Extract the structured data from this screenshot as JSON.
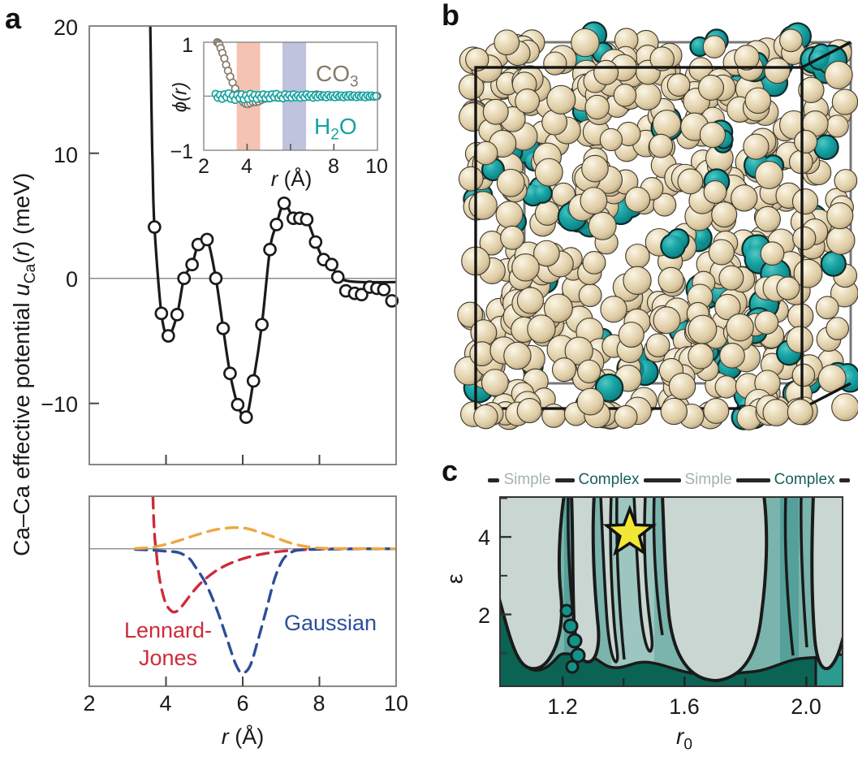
{
  "panels": {
    "a": {
      "label": "a"
    },
    "b": {
      "label": "b",
      "description": "simulation-box-snapshot",
      "particle_color": "#e9dcbc",
      "solvent_color": "#16a2a3",
      "box_color": "#141414",
      "back_edge_color": "#777777",
      "sphere_count": 460,
      "blob_count": 58,
      "fringe_count": 20,
      "seed": 11
    },
    "c": {
      "label": "c"
    }
  },
  "chart_data": [
    {
      "type": "scatter",
      "title": "Ca-Ca effective potential",
      "ylabel_parts": {
        "p1": "Ca–Ca effective potential ",
        "p2": "u",
        "p3": "Ca",
        "p4": "(",
        "p5": "r",
        "p6": ") (meV)"
      },
      "xlim": [
        2,
        10
      ],
      "ylim": [
        -14.9,
        20
      ],
      "ytick_values": [
        20,
        10,
        0,
        -10
      ],
      "yticklabels": [
        "20",
        "10",
        "0",
        "−10"
      ],
      "xtick_minor": [
        4,
        6,
        8
      ],
      "line_color": "#1a1a1a",
      "marker": "open-circle",
      "points": [
        [
          3.7,
          4.1
        ],
        [
          3.88,
          -2.8
        ],
        [
          4.06,
          -4.6
        ],
        [
          4.29,
          -2.9
        ],
        [
          4.47,
          0.0
        ],
        [
          4.68,
          1.1
        ],
        [
          4.84,
          2.7
        ],
        [
          5.07,
          3.1
        ],
        [
          5.3,
          0.0
        ],
        [
          5.49,
          -4.0
        ],
        [
          5.67,
          -7.6
        ],
        [
          5.87,
          -10.1
        ],
        [
          6.09,
          -11.1
        ],
        [
          6.28,
          -8.2
        ],
        [
          6.5,
          -3.7
        ],
        [
          6.71,
          2.3
        ],
        [
          6.88,
          4.3
        ],
        [
          7.08,
          6.0
        ],
        [
          7.32,
          4.8
        ],
        [
          7.49,
          4.8
        ],
        [
          7.67,
          4.7
        ],
        [
          7.9,
          2.9
        ],
        [
          8.11,
          1.5
        ],
        [
          8.32,
          1.1
        ],
        [
          8.48,
          0.1
        ],
        [
          8.69,
          -1.0
        ],
        [
          8.92,
          -1.2
        ],
        [
          9.1,
          -1.3
        ],
        [
          9.31,
          -0.7
        ],
        [
          9.5,
          -0.8
        ],
        [
          9.68,
          -0.9
        ],
        [
          9.89,
          -1.8
        ]
      ],
      "line_entry": [
        [
          3.59,
          20.4
        ],
        [
          3.62,
          14
        ],
        [
          3.65,
          9
        ],
        [
          3.7,
          4.1
        ]
      ],
      "line_tail": [
        [
          8.48,
          0.1
        ],
        [
          8.75,
          -0.22
        ],
        [
          9.1,
          -0.3
        ],
        [
          9.55,
          -0.31
        ],
        [
          10,
          -0.3
        ]
      ]
    },
    {
      "type": "scatter",
      "title": "inset transferability test",
      "ylabel": "ϕ(r)",
      "xlabel_parts": {
        "p1": "r",
        "p2": " (Å)"
      },
      "xlim": [
        2,
        10
      ],
      "ylim": [
        -1,
        1
      ],
      "yticklabels": [
        "1",
        "−1"
      ],
      "xtick_values": [
        2,
        4,
        8,
        10
      ],
      "xticklabels": [
        "2",
        "4",
        "8",
        "10"
      ],
      "xtick_minor": [
        4,
        6,
        8
      ],
      "bands": [
        {
          "x0": 3.52,
          "x1": 4.6,
          "color": "#f4c3b2"
        },
        {
          "x0": 5.63,
          "x1": 6.72,
          "color": "#bfc3dd"
        }
      ],
      "series": [
        {
          "label_parts": {
            "p1": "CO",
            "sub": "3",
            "p2": ""
          },
          "color": "#857a69",
          "points": [
            [
              2.62,
              1.0
            ],
            [
              2.68,
              0.985
            ],
            [
              2.72,
              0.96
            ],
            [
              2.78,
              0.89
            ],
            [
              2.86,
              0.8
            ],
            [
              2.95,
              0.7
            ],
            [
              3.03,
              0.58
            ],
            [
              3.12,
              0.47
            ],
            [
              3.22,
              0.36
            ],
            [
              3.33,
              0.25
            ],
            [
              3.45,
              0.14
            ],
            [
              3.57,
              0.04
            ],
            [
              3.7,
              -0.05
            ],
            [
              3.82,
              -0.11
            ],
            [
              3.93,
              -0.14
            ],
            [
              4.04,
              -0.15
            ],
            [
              4.15,
              -0.13
            ],
            [
              4.27,
              -0.11
            ],
            [
              4.4,
              -0.11
            ],
            [
              4.53,
              -0.1
            ],
            [
              4.66,
              -0.07
            ],
            [
              4.8,
              -0.05
            ],
            [
              4.95,
              -0.04
            ],
            [
              5.1,
              -0.03
            ],
            [
              5.26,
              -0.02
            ],
            [
              5.42,
              -0.03
            ],
            [
              5.58,
              -0.01
            ],
            [
              5.75,
              -0.02
            ],
            [
              5.92,
              0.0
            ],
            [
              6.1,
              -0.01
            ],
            [
              6.28,
              0.01
            ],
            [
              6.46,
              -0.02
            ],
            [
              6.64,
              0.0
            ],
            [
              6.83,
              0.01
            ],
            [
              7.02,
              0.02
            ],
            [
              7.21,
              0.03
            ],
            [
              7.4,
              0.02
            ],
            [
              7.6,
              0.01
            ],
            [
              7.8,
              0.0
            ],
            [
              8.0,
              0.01
            ],
            [
              8.2,
              -0.01
            ],
            [
              8.4,
              0.0
            ],
            [
              8.6,
              0.01
            ],
            [
              8.8,
              -0.01
            ],
            [
              9.0,
              0.0
            ],
            [
              9.2,
              0.01
            ],
            [
              9.4,
              0.0
            ],
            [
              9.6,
              -0.01
            ],
            [
              9.8,
              0.0
            ],
            [
              10.0,
              0.0
            ]
          ]
        },
        {
          "label_parts": {
            "p1": "H",
            "sub": "2",
            "p2": "O"
          },
          "color": "#16a2a0",
          "r_start": 2.55,
          "r_step": 0.1,
          "phi": [
            0.04,
            -0.03,
            0.02,
            -0.05,
            0.03,
            -0.02,
            0.05,
            -0.05,
            0.01,
            -0.07,
            0.02,
            -0.04,
            0.03,
            -0.06,
            0.01,
            -0.05,
            0.04,
            -0.03,
            0.02,
            -0.05,
            0.02,
            -0.03,
            0.03,
            -0.04,
            0.02,
            -0.04,
            0.03,
            -0.02,
            0.04,
            -0.03,
            0.01,
            -0.04,
            0.03,
            -0.02,
            0.02,
            -0.03,
            0.03,
            -0.02,
            0.01,
            -0.03,
            0.02,
            -0.02,
            0.03,
            -0.01,
            0.02,
            -0.03,
            0.01,
            -0.02,
            0.02,
            -0.01,
            0.01,
            -0.02,
            0.02,
            -0.01,
            0.01,
            -0.02,
            0.02,
            -0.01,
            0.01,
            -0.02,
            0.01,
            -0.01,
            0.02,
            -0.01,
            0.01,
            -0.02,
            0.01,
            -0.01,
            0.01,
            -0.02,
            0.01,
            -0.01,
            0.01,
            -0.01,
            0.0
          ]
        }
      ]
    },
    {
      "type": "line",
      "title": "model potential components",
      "xlabel_parts": {
        "p1": "r",
        "p2": " (Å)"
      },
      "xlim": [
        2,
        10
      ],
      "xtick_values": [
        2,
        4,
        6,
        8,
        10
      ],
      "xticklabels": [
        "2",
        "4",
        "6",
        "8",
        "10"
      ],
      "xtick_minor": [
        4,
        6,
        8
      ],
      "series": [
        {
          "label": "Lennard-",
          "label2": "Jones",
          "color": "#ce2b3a",
          "dash": true,
          "points": [
            [
              3.66,
              0.82
            ],
            [
              3.68,
              0.45
            ],
            [
              3.71,
              0.15
            ],
            [
              3.74,
              0.0
            ],
            [
              3.78,
              -0.25
            ],
            [
              3.84,
              -0.5
            ],
            [
              3.92,
              -0.72
            ],
            [
              4.0,
              -0.87
            ],
            [
              4.1,
              -0.96
            ],
            [
              4.2,
              -1.0
            ],
            [
              4.32,
              -0.97
            ],
            [
              4.45,
              -0.88
            ],
            [
              4.6,
              -0.76
            ],
            [
              4.8,
              -0.61
            ],
            [
              5.0,
              -0.49
            ],
            [
              5.25,
              -0.37
            ],
            [
              5.5,
              -0.28
            ],
            [
              5.8,
              -0.2
            ],
            [
              6.1,
              -0.14
            ],
            [
              6.45,
              -0.09
            ],
            [
              6.8,
              -0.055
            ],
            [
              7.2,
              -0.03
            ],
            [
              7.6,
              -0.015
            ],
            [
              8.0,
              -0.005
            ],
            [
              8.6,
              0.0
            ],
            [
              9.3,
              0.0
            ],
            [
              10.0,
              0.0
            ]
          ]
        },
        {
          "label": "Gaussian",
          "color": "#2d4f9a",
          "dash": true,
          "points": [
            [
              3.2,
              -0.01
            ],
            [
              3.6,
              -0.02
            ],
            [
              4.0,
              -0.04
            ],
            [
              4.33,
              -0.06
            ],
            [
              4.6,
              -0.15
            ],
            [
              4.75,
              -0.27
            ],
            [
              5.03,
              -0.54
            ],
            [
              5.32,
              -0.95
            ],
            [
              5.6,
              -1.44
            ],
            [
              5.81,
              -1.81
            ],
            [
              5.98,
              -1.96
            ],
            [
              6.19,
              -1.85
            ],
            [
              6.4,
              -1.44
            ],
            [
              6.62,
              -0.95
            ],
            [
              6.83,
              -0.48
            ],
            [
              7.04,
              -0.18
            ],
            [
              7.25,
              -0.06
            ],
            [
              7.46,
              -0.02
            ],
            [
              7.8,
              -0.01
            ],
            [
              8.4,
              -0.005
            ],
            [
              9.2,
              0.0
            ],
            [
              10.0,
              0.0
            ]
          ]
        },
        {
          "label": "",
          "color": "#eba843",
          "dash": true,
          "points": [
            [
              3.2,
              0.005
            ],
            [
              3.6,
              0.02
            ],
            [
              4.0,
              0.07
            ],
            [
              4.4,
              0.14
            ],
            [
              4.8,
              0.22
            ],
            [
              5.2,
              0.29
            ],
            [
              5.5,
              0.32
            ],
            [
              5.8,
              0.335
            ],
            [
              6.1,
              0.32
            ],
            [
              6.4,
              0.27
            ],
            [
              6.8,
              0.19
            ],
            [
              7.2,
              0.1
            ],
            [
              7.6,
              0.04
            ],
            [
              8.0,
              0.012
            ],
            [
              8.5,
              0.004
            ],
            [
              9.2,
              0.002
            ],
            [
              10.0,
              0.0
            ]
          ]
        }
      ]
    },
    {
      "type": "heatmap",
      "title": "phase diagram",
      "ylabel": "ε",
      "xlabel_parts": {
        "p1": "r",
        "sub": "0"
      },
      "xlim": [
        0.99,
        2.12
      ],
      "ylim": [
        0.15,
        5.03
      ],
      "ytick_values": [
        4,
        2
      ],
      "yticklabels": [
        "4",
        "2"
      ],
      "ytick_minor": [
        5,
        3,
        1
      ],
      "xtick_values": [
        1.2,
        1.6,
        2.0
      ],
      "xticklabels": [
        "1.2",
        "1.6",
        "2.0"
      ],
      "xtick_minor": [
        1.4,
        1.8
      ],
      "legend": [
        "Simple",
        "Complex",
        "Simple",
        "Complex"
      ],
      "legend_colors": {
        "simple_text": "#a4b2ae",
        "complex_text": "#16605b"
      },
      "star": {
        "r0": 1.42,
        "eps": 4.1,
        "outer_radius": 30,
        "inner_radius": 12.5
      },
      "colors": {
        "simple": "#c9d6d1",
        "band": "#7ab4ad",
        "band_dark": "#55a09a",
        "band_light": "#9dc6c0",
        "deep": "#0b6354",
        "pocket": "#12938a",
        "pocket2": "#2d9a90",
        "outline": "#1a1a1a",
        "star": "#f2e735"
      }
    }
  ]
}
